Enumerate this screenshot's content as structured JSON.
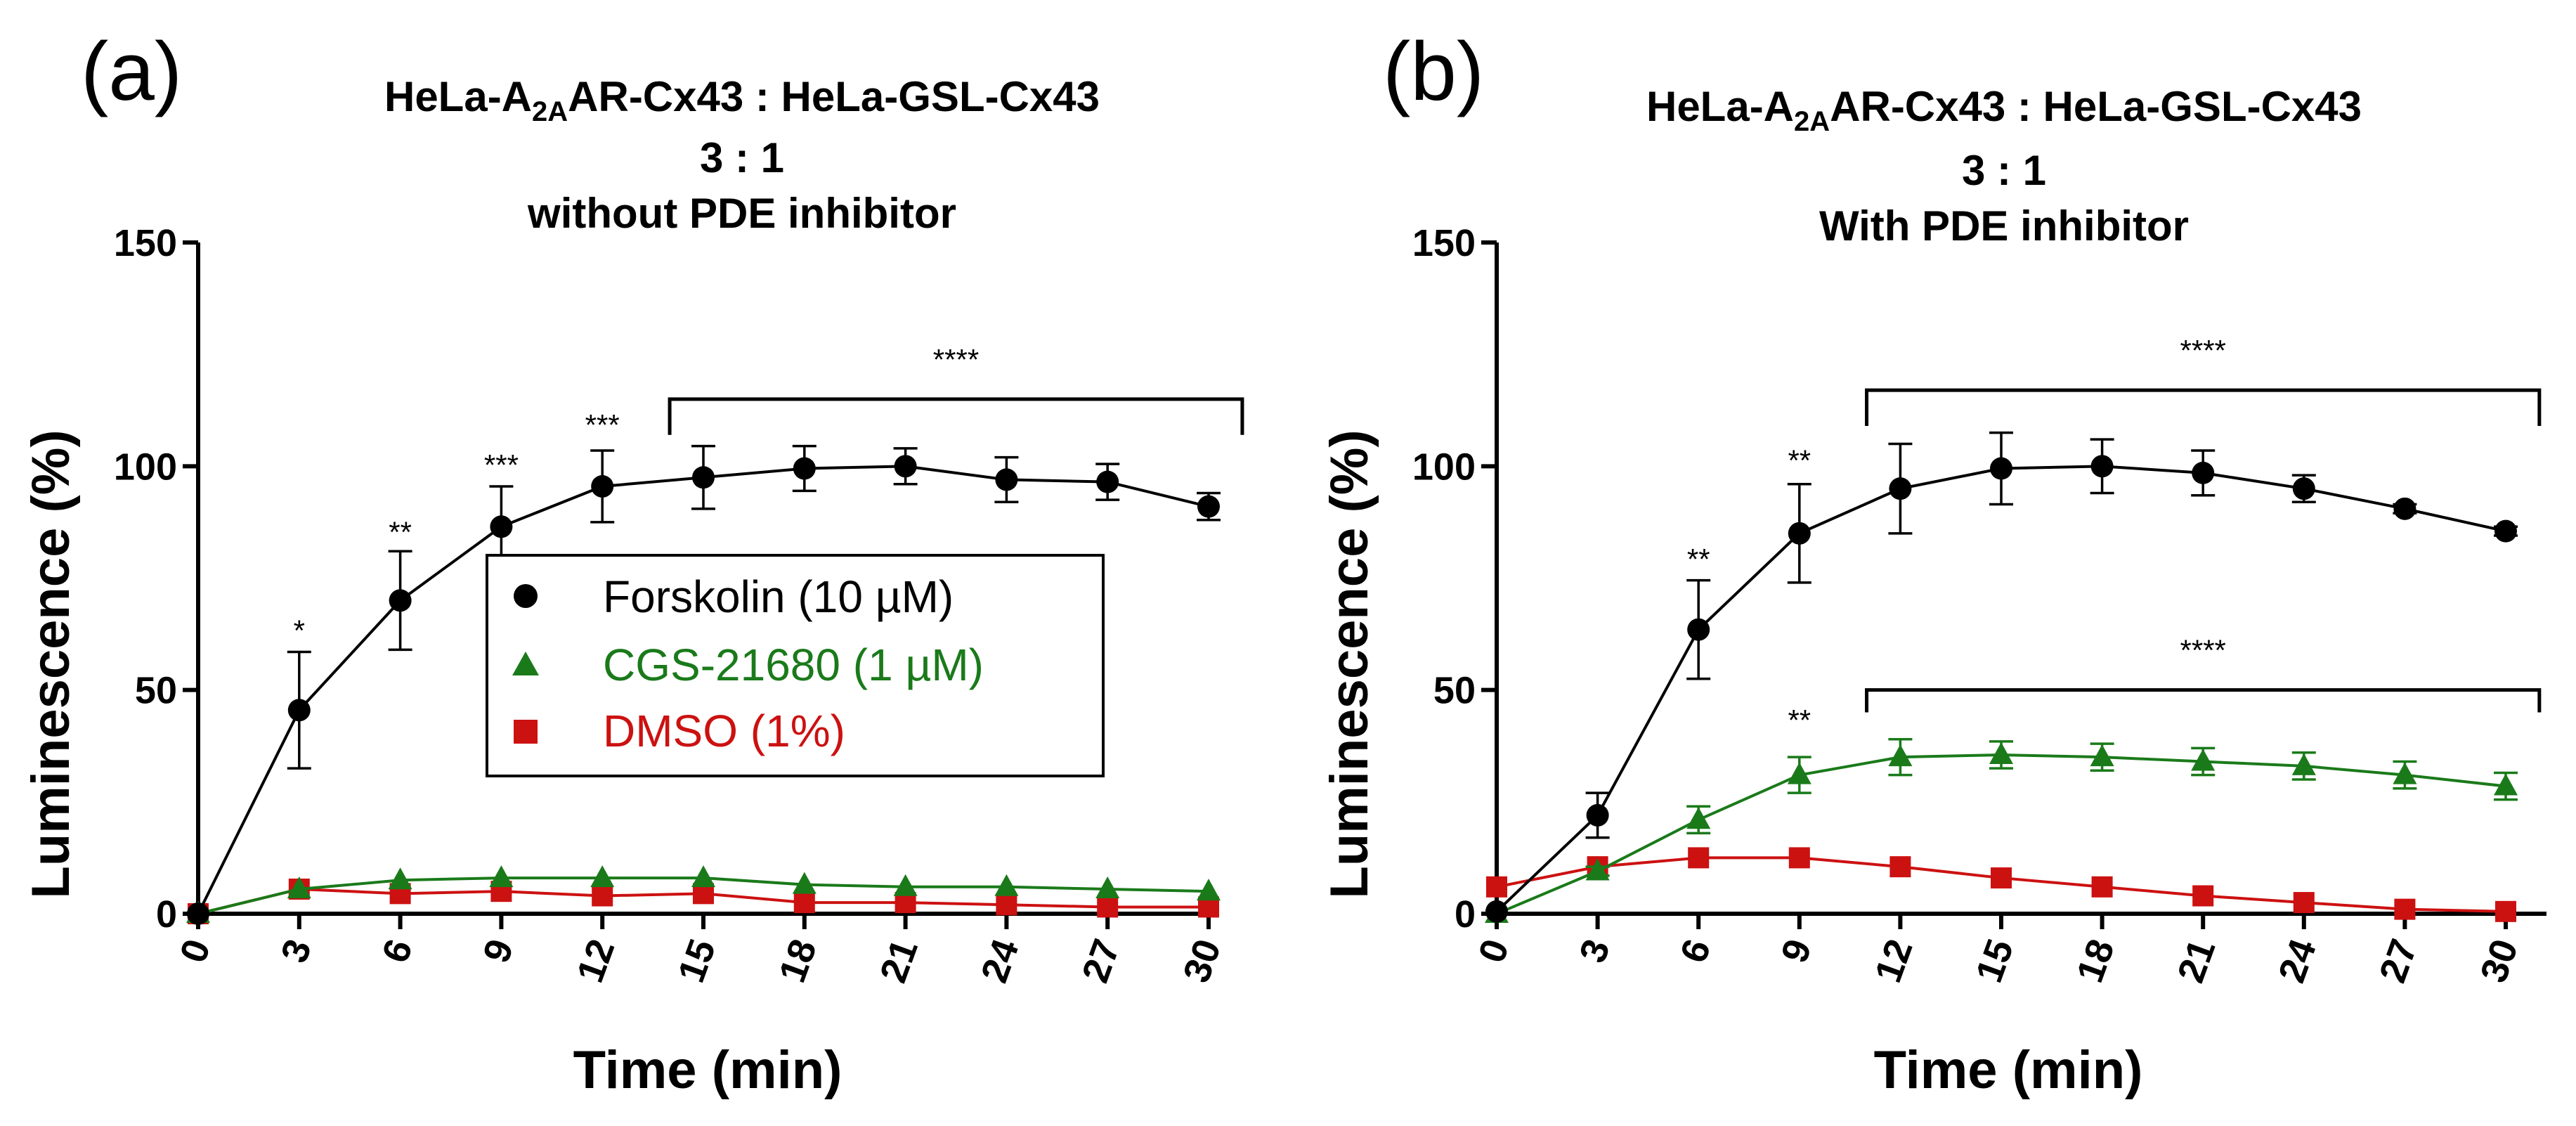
{
  "figure_title": "Luminescence time course",
  "colors": {
    "forskolin": "#000000",
    "cgs": "#1a7a1a",
    "dmso": "#cc1111"
  },
  "chart_data": [
    {
      "type": "line",
      "panel_label": "(a)",
      "title_lines": [
        "HeLa-A",
        "2A",
        "AR-Cx43 : HeLa-GSL-Cx43",
        "3 : 1",
        "without PDE inhibitor"
      ],
      "xlabel": "Time (min)",
      "ylabel": "Luminescence (%)",
      "xlim": [
        0,
        30
      ],
      "ylim": [
        0,
        150
      ],
      "x_ticks": [
        "0",
        "3",
        "6",
        "9",
        "12",
        "15",
        "18",
        "21",
        "24",
        "27",
        "30"
      ],
      "y_ticks": [
        "0",
        "50",
        "100",
        "150"
      ],
      "x": [
        0,
        3,
        6,
        9,
        12,
        15,
        18,
        21,
        24,
        27,
        30
      ],
      "series": [
        {
          "name": "Forskolin (10 µM)",
          "marker": "circle",
          "color_key": "forskolin",
          "values": [
            0,
            45.5,
            70,
            86.5,
            95.5,
            97.5,
            99.5,
            100,
            97,
            96.5,
            91
          ],
          "errors": [
            0,
            13,
            11,
            9,
            8,
            7,
            5,
            4,
            5,
            4,
            3
          ]
        },
        {
          "name": "CGS-21680 (1 µM)",
          "marker": "triangle",
          "color_key": "cgs",
          "values": [
            0,
            5.5,
            7.5,
            8,
            8,
            8,
            6.5,
            6,
            6,
            5.5,
            5
          ],
          "errors": [
            0,
            0,
            0,
            0,
            0,
            0,
            0,
            0,
            0,
            0,
            0
          ]
        },
        {
          "name": "DMSO (1%)",
          "marker": "square",
          "color_key": "dmso",
          "values": [
            0,
            5.5,
            4.5,
            5,
            4,
            4.5,
            2.5,
            2.5,
            2,
            1.5,
            1.5
          ],
          "errors": [
            0,
            0,
            0,
            0,
            0,
            0,
            0,
            0,
            0,
            0,
            0
          ]
        }
      ],
      "annotations": [
        {
          "text": "*",
          "x": 3,
          "y": 61
        },
        {
          "text": "**",
          "x": 6,
          "y": 83
        },
        {
          "text": "***",
          "x": 9,
          "y": 98
        },
        {
          "text": "***",
          "x": 12,
          "y": 107
        }
      ],
      "brackets": [
        {
          "text": "****",
          "x_start": 14,
          "x_end": 31,
          "y": 115,
          "drop": 8
        }
      ],
      "legend": {
        "placement": "center"
      }
    },
    {
      "type": "line",
      "panel_label": "(b)",
      "title_lines": [
        "HeLa-A",
        "2A",
        "AR-Cx43 : HeLa-GSL-Cx43",
        "3 : 1",
        "With PDE inhibitor"
      ],
      "xlabel": "Time (min)",
      "ylabel": "Luminescence (%)",
      "xlim": [
        0,
        30
      ],
      "ylim": [
        0,
        150
      ],
      "x_ticks": [
        "0",
        "3",
        "6",
        "9",
        "12",
        "15",
        "18",
        "21",
        "24",
        "27",
        "30"
      ],
      "y_ticks": [
        "0",
        "50",
        "100",
        "150"
      ],
      "x": [
        0,
        3,
        6,
        9,
        12,
        15,
        18,
        21,
        24,
        27,
        30
      ],
      "series": [
        {
          "name": "Forskolin (10 µM)",
          "marker": "circle",
          "color_key": "forskolin",
          "values": [
            0.5,
            22,
            63.5,
            85,
            95,
            99.5,
            100,
            98.5,
            95,
            90.5,
            85.5
          ],
          "errors": [
            0,
            5,
            11,
            11,
            10,
            8,
            6,
            5,
            3,
            1,
            1
          ]
        },
        {
          "name": "CGS-21680 (1 µM)",
          "marker": "triangle",
          "color_key": "cgs",
          "values": [
            0,
            9.5,
            21,
            31,
            35,
            35.5,
            35,
            34,
            33,
            31,
            28.5
          ],
          "errors": [
            0,
            1,
            3,
            4,
            4,
            3,
            3,
            3,
            3,
            3,
            3
          ]
        },
        {
          "name": "DMSO (1%)",
          "marker": "square",
          "color_key": "dmso",
          "values": [
            6,
            10.5,
            12.5,
            12.5,
            10.5,
            8,
            6,
            4,
            2.5,
            1,
            0.5
          ],
          "errors": [
            0,
            0,
            0,
            0,
            0,
            0,
            0,
            0,
            0,
            0,
            0
          ]
        }
      ],
      "annotations": [
        {
          "text": "**",
          "x": 6,
          "y": 77
        },
        {
          "text": "**",
          "x": 9,
          "y": 99
        },
        {
          "text": "**",
          "x": 9,
          "y": 41
        }
      ],
      "brackets": [
        {
          "text": "****",
          "x_start": 11,
          "x_end": 31,
          "y": 117,
          "drop": 8
        },
        {
          "text": "****",
          "x_start": 11,
          "x_end": 31,
          "y": 50,
          "drop": 5
        }
      ]
    }
  ]
}
